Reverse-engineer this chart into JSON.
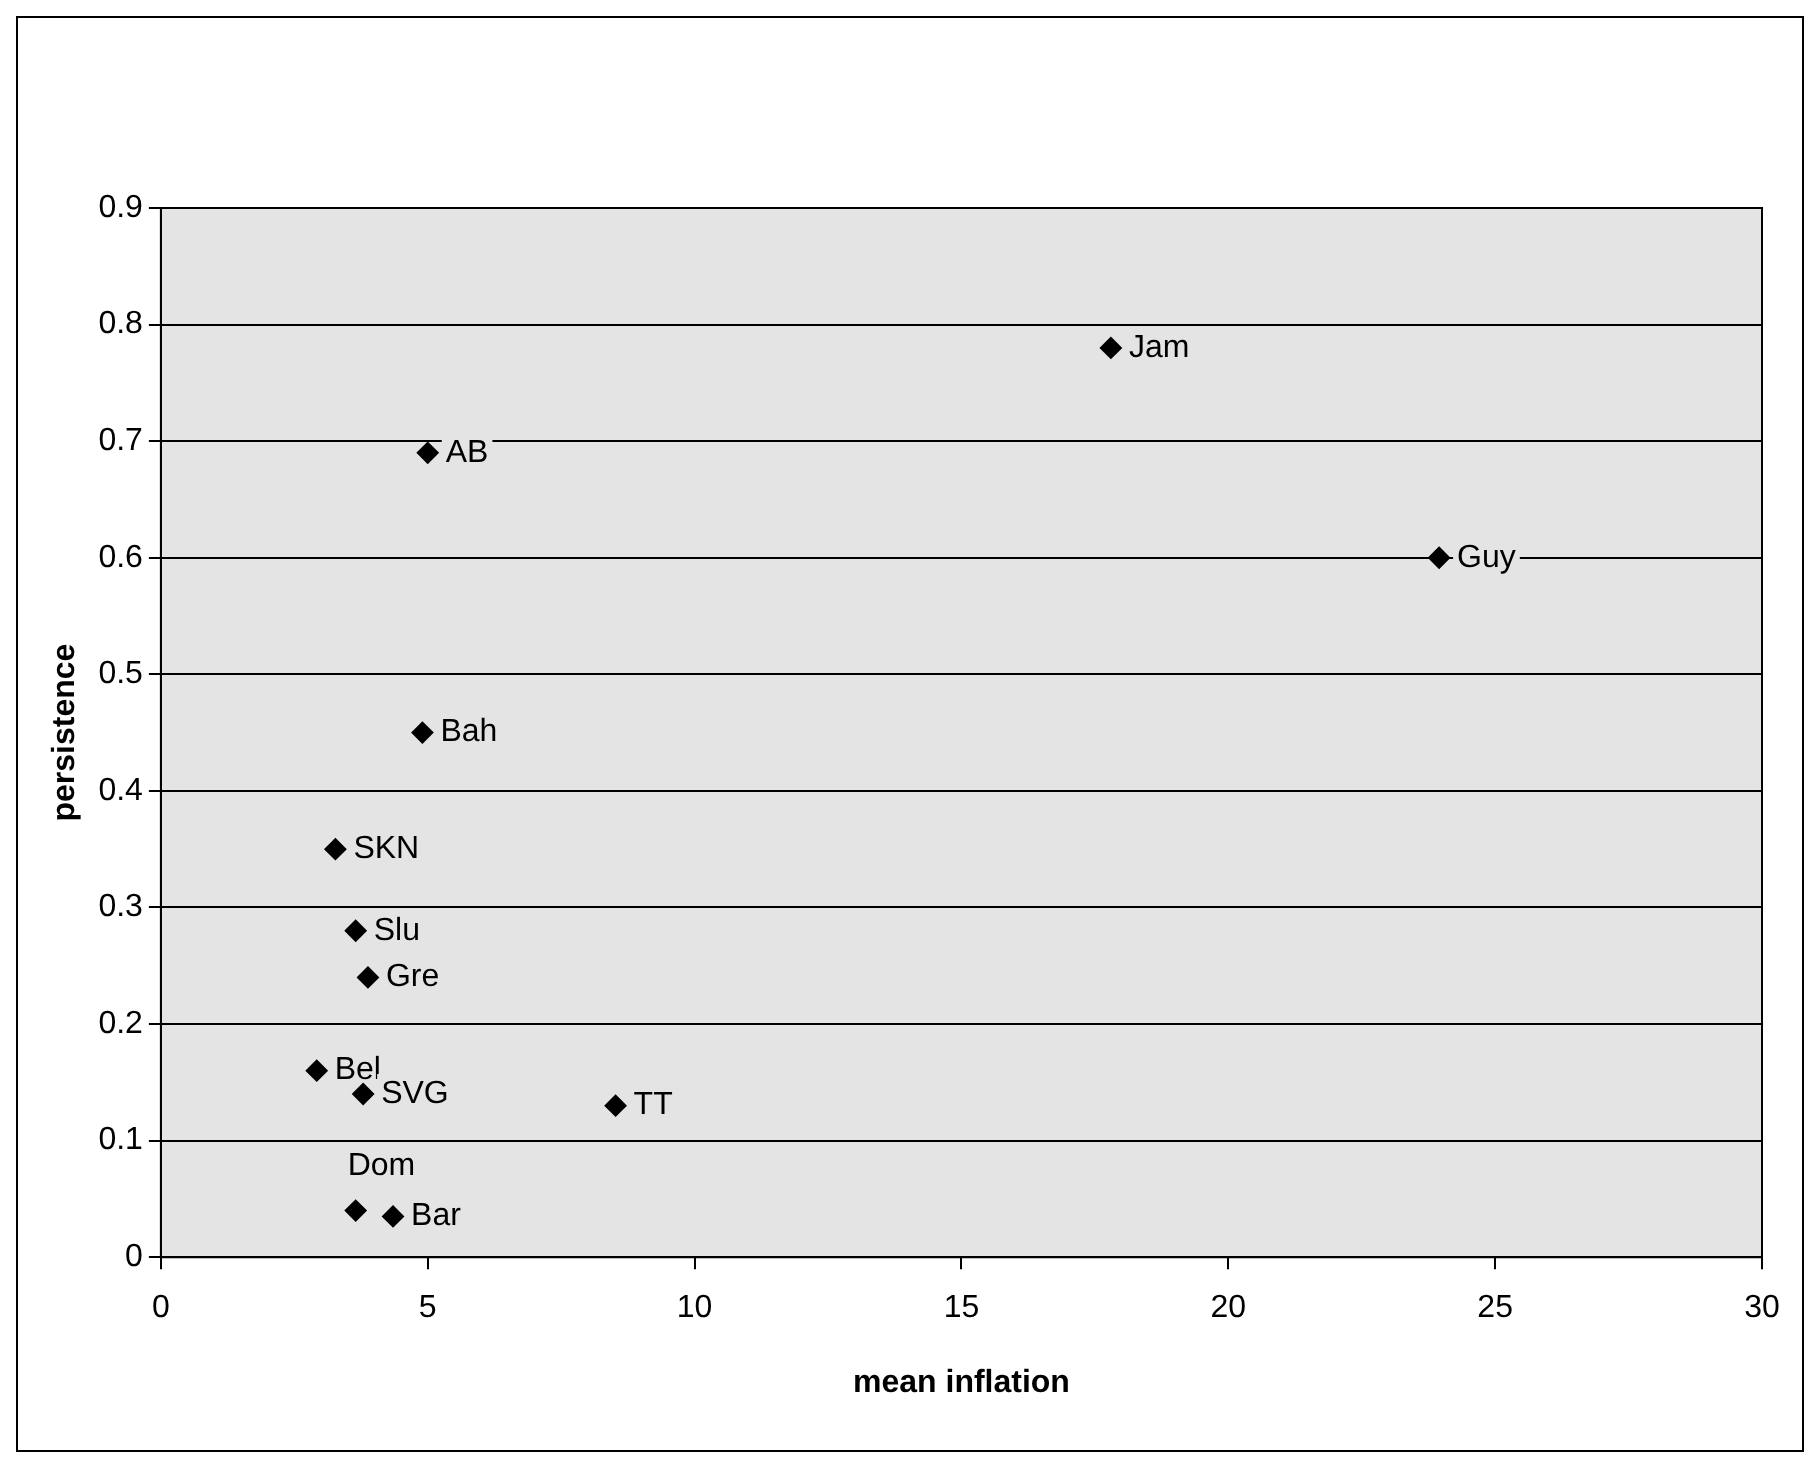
{
  "chart_data": {
    "type": "scatter",
    "xlabel": "mean inflation",
    "ylabel": "persistence",
    "series": [
      {
        "color": "#000000",
        "x": [
          17.8,
          5.0,
          23.95,
          4.9,
          3.27,
          3.65,
          3.88,
          2.92,
          3.79,
          8.52,
          3.65,
          4.35
        ],
        "values": [
          0.78,
          0.69,
          0.6,
          0.45,
          0.35,
          0.28,
          0.24,
          0.16,
          0.14,
          0.13,
          0.04,
          0.035
        ]
      }
    ],
    "annotations": [
      {
        "text": "Jam",
        "x": 17.8,
        "y": 0.78
      },
      {
        "text": "AB",
        "x": 5.0,
        "y": 0.69
      },
      {
        "text": "Guy",
        "x": 23.95,
        "y": 0.6
      },
      {
        "text": "Bah",
        "x": 4.9,
        "y": 0.45
      },
      {
        "text": "SKN",
        "x": 3.27,
        "y": 0.35
      },
      {
        "text": "Slu",
        "x": 3.65,
        "y": 0.28
      },
      {
        "text": "Gre",
        "x": 3.88,
        "y": 0.24
      },
      {
        "text": "Bel",
        "x": 2.92,
        "y": 0.16
      },
      {
        "text": "SVG",
        "x": 3.79,
        "y": 0.14
      },
      {
        "text": "TT",
        "x": 8.52,
        "y": 0.13
      },
      {
        "text": "Dom",
        "x": 3.65,
        "y": 0.04
      },
      {
        "text": "Bar",
        "x": 4.35,
        "y": 0.035
      }
    ],
    "xlim": [
      0,
      30
    ],
    "xticks": [
      0,
      5,
      10,
      15,
      20,
      25,
      30
    ],
    "ylim": [
      0,
      0.9
    ],
    "yticks": [
      0,
      0.1,
      0.2,
      0.3,
      0.4,
      0.5,
      0.6,
      0.7,
      0.8,
      0.9
    ],
    "grid": "y",
    "legend": false,
    "marker": "diamond"
  }
}
